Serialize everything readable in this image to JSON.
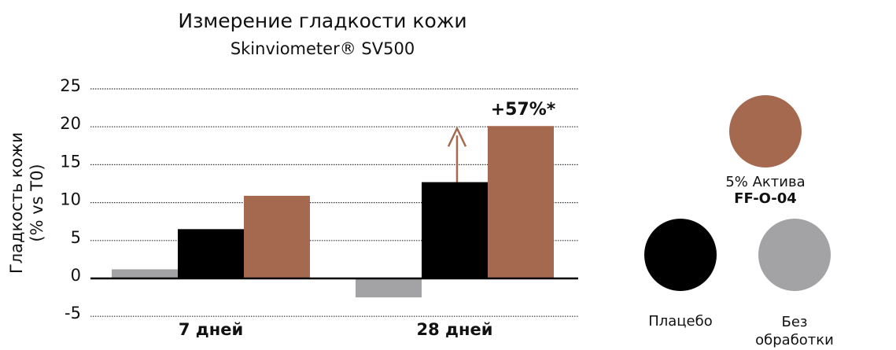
{
  "chart_data": {
    "type": "bar",
    "title": "Измерение гладкости кожи",
    "subtitle": "Skinviometer® SV500",
    "ylabel": [
      "Гладкость кожи",
      "(% vs T0)"
    ],
    "categories": [
      "7 дней",
      "28 дней"
    ],
    "series": [
      {
        "name": "Без обработки",
        "color": "#a3a3a5",
        "values": [
          1.2,
          -2.5
        ]
      },
      {
        "name": "Плацебо",
        "color": "#000000",
        "values": [
          6.5,
          12.7
        ]
      },
      {
        "name": "5% Актива",
        "code": "FF-O-04",
        "color": "#a5694f",
        "values": [
          10.9,
          20.1
        ]
      }
    ],
    "annotation": "+57%*",
    "ylim": [
      -6,
      26
    ],
    "yticks": [
      -5,
      0,
      5,
      10,
      15,
      20,
      25
    ],
    "grid": true
  }
}
